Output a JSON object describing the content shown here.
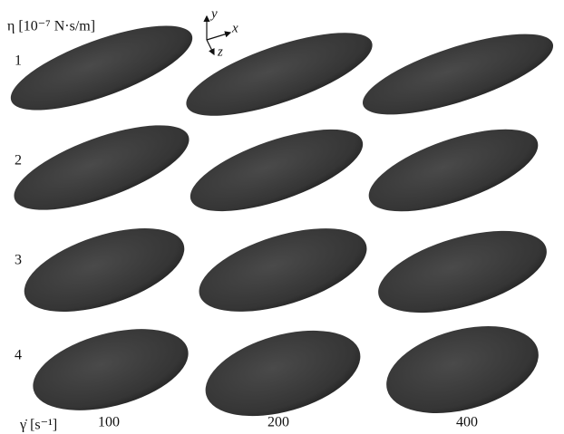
{
  "row_axis_label": "η [10⁻⁷ N·s/m]",
  "rows": [
    "1",
    "2",
    "3",
    "4"
  ],
  "column_axis_label": "γ̇ [s⁻¹]",
  "columns": [
    "100",
    "200",
    "400"
  ],
  "axes": {
    "x": "x",
    "y": "y",
    "z": "z"
  }
}
